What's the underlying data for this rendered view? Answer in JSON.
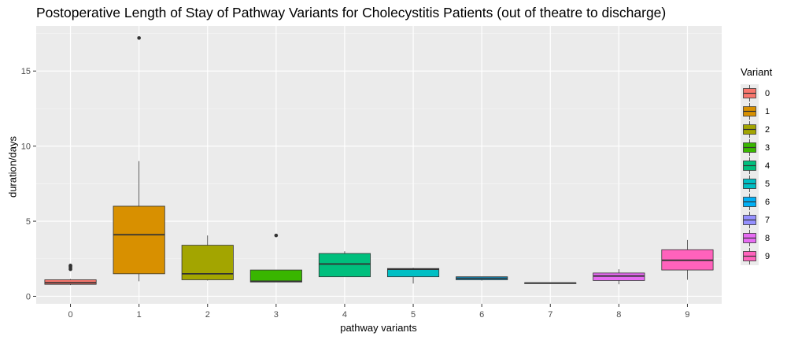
{
  "chart_data": {
    "type": "boxplot",
    "title": "Postoperative Length of Stay of Pathway Variants for Cholecystitis Patients (out of theatre to discharge)",
    "xlabel": "pathway variants",
    "ylabel": "duration/days",
    "ylim": [
      -0.5,
      18
    ],
    "yticks": [
      0,
      5,
      10,
      15
    ],
    "grid": true,
    "legend": {
      "title": "Variant",
      "placement": "right"
    },
    "categories": [
      "0",
      "1",
      "2",
      "3",
      "4",
      "5",
      "6",
      "7",
      "8",
      "9"
    ],
    "colors": [
      "#F8766D",
      "#D89000",
      "#A3A500",
      "#39B600",
      "#00BF7D",
      "#00BFC4",
      "#00B0F6",
      "#9590FF",
      "#E76BF3",
      "#FF62BC"
    ],
    "boxes": [
      {
        "variant": "0",
        "min": 0.75,
        "q1": 0.8,
        "median": 0.9,
        "q3": 1.1,
        "max": 1.15,
        "outliers": [
          1.8,
          1.9,
          2.0,
          2.05
        ]
      },
      {
        "variant": "1",
        "min": 1.0,
        "q1": 1.5,
        "median": 4.1,
        "q3": 6.0,
        "max": 9.0,
        "outliers": [
          17.2
        ]
      },
      {
        "variant": "2",
        "min": 1.05,
        "q1": 1.1,
        "median": 1.5,
        "q3": 3.4,
        "max": 4.05,
        "outliers": []
      },
      {
        "variant": "3",
        "min": 0.95,
        "q1": 0.95,
        "median": 1.0,
        "q3": 1.75,
        "max": 1.75,
        "outliers": [
          4.05
        ]
      },
      {
        "variant": "4",
        "min": 1.3,
        "q1": 1.3,
        "median": 2.15,
        "q3": 2.85,
        "max": 3.0,
        "outliers": []
      },
      {
        "variant": "5",
        "min": 0.85,
        "q1": 1.3,
        "median": 1.8,
        "q3": 1.85,
        "max": 1.9,
        "outliers": []
      },
      {
        "variant": "6",
        "min": 1.05,
        "q1": 1.1,
        "median": 1.2,
        "q3": 1.3,
        "max": 1.3,
        "outliers": []
      },
      {
        "variant": "7",
        "min": 0.85,
        "q1": 0.85,
        "median": 0.88,
        "q3": 0.9,
        "max": 0.9,
        "outliers": []
      },
      {
        "variant": "8",
        "min": 0.8,
        "q1": 1.05,
        "median": 1.35,
        "q3": 1.55,
        "max": 1.8,
        "outliers": []
      },
      {
        "variant": "9",
        "min": 1.1,
        "q1": 1.75,
        "median": 2.4,
        "q3": 3.1,
        "max": 3.75,
        "outliers": []
      }
    ]
  }
}
